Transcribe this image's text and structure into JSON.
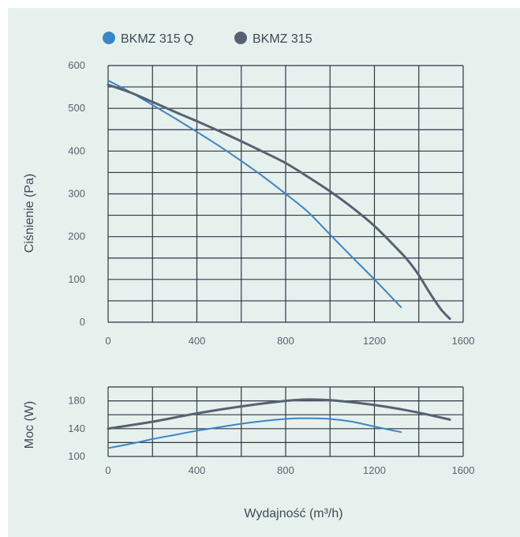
{
  "chart_data": [
    {
      "type": "line",
      "legend": [
        {
          "name": "BKMZ 315 Q",
          "color": "#3a86c8"
        },
        {
          "name": "BKMZ 315",
          "color": "#566272"
        }
      ],
      "legend_position": "top-left",
      "ylabel": "Ciśnienie (Pa)",
      "xlim": [
        0,
        1600
      ],
      "ylim": [
        0,
        600
      ],
      "x_ticks": [
        "0",
        "400",
        "800",
        "1200",
        "1600"
      ],
      "y_ticks": [
        "0",
        "100",
        "200",
        "300",
        "400",
        "500",
        "600"
      ],
      "grid": true,
      "series": [
        {
          "name": "BKMZ 315 Q",
          "color": "#3a86c8",
          "x": [
            0,
            100,
            200,
            300,
            400,
            500,
            600,
            700,
            800,
            900,
            1000,
            1100,
            1200,
            1320
          ],
          "y": [
            565,
            538,
            508,
            477,
            445,
            412,
            377,
            340,
            300,
            258,
            205,
            152,
            100,
            35
          ]
        },
        {
          "name": "BKMZ 315",
          "color": "#566272",
          "x": [
            0,
            100,
            200,
            300,
            400,
            500,
            600,
            700,
            800,
            900,
            1000,
            1100,
            1200,
            1300,
            1350,
            1400,
            1450,
            1500,
            1540
          ],
          "y": [
            555,
            537,
            515,
            492,
            470,
            447,
            423,
            398,
            372,
            340,
            306,
            268,
            225,
            173,
            145,
            110,
            68,
            30,
            8
          ]
        }
      ]
    },
    {
      "type": "line",
      "ylabel": "Moc (W)",
      "xlabel": "Wydajność (m³/h)",
      "xlim": [
        0,
        1600
      ],
      "ylim": [
        100,
        200
      ],
      "x_ticks": [
        "0",
        "400",
        "800",
        "1200",
        "1600"
      ],
      "y_ticks": [
        "100",
        "140",
        "180"
      ],
      "grid": true,
      "series": [
        {
          "name": "BKMZ 315 Q",
          "color": "#3a86c8",
          "x": [
            0,
            100,
            200,
            300,
            400,
            500,
            600,
            700,
            800,
            900,
            1000,
            1100,
            1200,
            1320
          ],
          "y": [
            112,
            118,
            125,
            131,
            137,
            142,
            147,
            151,
            154,
            155,
            154,
            150,
            143,
            135
          ]
        },
        {
          "name": "BKMZ 315",
          "color": "#566272",
          "x": [
            0,
            200,
            400,
            600,
            800,
            900,
            1000,
            1100,
            1200,
            1300,
            1400,
            1540
          ],
          "y": [
            140,
            150,
            162,
            172,
            180,
            182,
            181,
            178,
            174,
            169,
            163,
            153
          ]
        }
      ]
    }
  ]
}
